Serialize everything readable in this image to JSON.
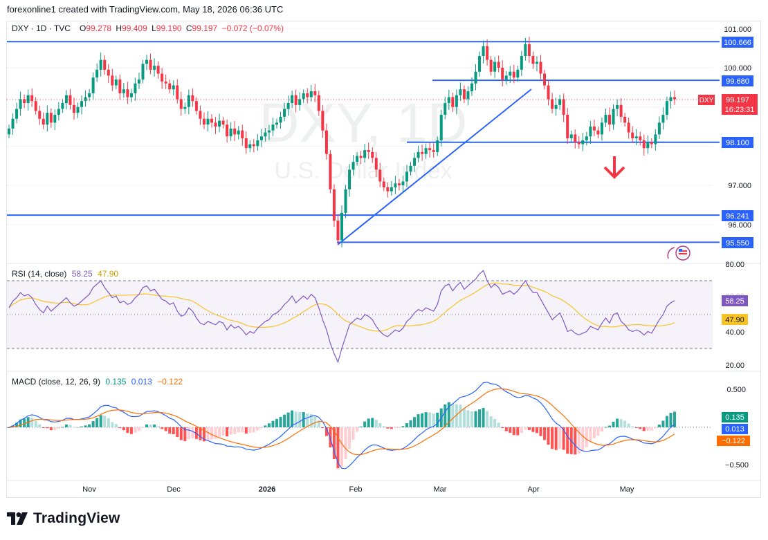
{
  "header": {
    "attribution": "forexonline1 created with TradingView.com, May 18, 2026 06:36 UTC"
  },
  "legend": {
    "symbol": "DXY · 1D · TVC",
    "o_label": "O",
    "o": "99.278",
    "h_label": "H",
    "h": "99.409",
    "l_label": "L",
    "l": "99.190",
    "c_label": "C",
    "c": "99.197",
    "chg": "−0.072 (−0.07%)"
  },
  "watermark": {
    "big": "DXY, 1D",
    "small": "U.S. Dollar Index"
  },
  "price_axis": {
    "ticks": [
      "101.000",
      "100.000",
      "97.000",
      "96.000"
    ],
    "level_labels": [
      "100.666",
      "99.680",
      "98.100",
      "96.241",
      "95.550"
    ],
    "last_symbol": "DXY",
    "last_price": "99.197",
    "countdown": "16:23:31",
    "bottom_cut": "80.00"
  },
  "levels": [
    100.666,
    99.68,
    98.1,
    96.241,
    95.55
  ],
  "rsi": {
    "title": "RSI (14, close)",
    "value": "58.25",
    "ma": "47.90",
    "ticks": [
      "40.00",
      "20.00"
    ],
    "cut_tick": "60.00",
    "color": "#7e57c2",
    "ma_color": "#f7c325"
  },
  "macd": {
    "title": "MACD (close, 12, 26, 9)",
    "macd": "0.135",
    "signal": "0.013",
    "hist": "−0.122",
    "ticks": [
      "0.500",
      "−0.500"
    ],
    "macd_color": "#2962ff",
    "signal_color": "#ff6d00"
  },
  "time_axis": {
    "labels": [
      "Nov",
      "Dec",
      "2026",
      "Feb",
      "Mar",
      "Apr",
      "May"
    ]
  },
  "brand": {
    "name": "TradingView"
  },
  "colors": {
    "up": "#089981",
    "down": "#f23645",
    "level": "#2962ff",
    "arrow": "#f23645"
  },
  "chart_data": {
    "type": "candlestick",
    "title": "DXY · 1D · TVC",
    "ylim": [
      95.2,
      101.2
    ],
    "x_labels": [
      "Nov",
      "Dec",
      "2026",
      "Feb",
      "Mar",
      "Apr",
      "May"
    ],
    "close": [
      98.45,
      98.7,
      98.95,
      99.2,
      99.1,
      99.3,
      99.15,
      98.9,
      98.7,
      98.55,
      98.85,
      98.6,
      98.8,
      98.95,
      99.1,
      99.3,
      99.05,
      98.85,
      99.0,
      99.15,
      99.25,
      99.35,
      99.75,
      99.95,
      100.2,
      99.95,
      99.8,
      99.55,
      99.7,
      99.35,
      99.45,
      99.25,
      99.35,
      99.6,
      99.7,
      100.1,
      100.2,
      99.95,
      100.05,
      99.85,
      99.65,
      99.6,
      99.45,
      99.55,
      99.2,
      98.95,
      99.0,
      99.3,
      99.15,
      98.9,
      98.7,
      98.55,
      98.7,
      98.6,
      98.5,
      98.65,
      98.55,
      98.25,
      98.45,
      98.3,
      98.4,
      98.2,
      97.95,
      98.05,
      98.0,
      98.15,
      98.25,
      98.35,
      98.4,
      98.55,
      98.6,
      98.75,
      98.95,
      99.1,
      99.3,
      99.05,
      99.2,
      99.35,
      99.25,
      99.4,
      99.3,
      98.9,
      98.4,
      97.8,
      96.9,
      96.1,
      95.6,
      96.3,
      96.9,
      97.4,
      97.6,
      97.75,
      97.7,
      97.9,
      97.85,
      97.7,
      97.4,
      97.1,
      96.95,
      96.85,
      96.95,
      97.05,
      97.0,
      97.1,
      97.35,
      97.5,
      97.7,
      97.85,
      97.8,
      97.95,
      97.9,
      97.85,
      98.15,
      98.8,
      99.1,
      99.25,
      99.0,
      99.3,
      99.45,
      99.2,
      99.4,
      99.6,
      99.9,
      100.3,
      100.55,
      100.2,
      99.9,
      100.15,
      100.0,
      99.7,
      99.8,
      99.9,
      99.75,
      99.95,
      100.3,
      100.6,
      100.3,
      100.1,
      100.15,
      99.85,
      99.55,
      99.2,
      98.95,
      99.05,
      99.2,
      98.8,
      98.2,
      98.3,
      98.1,
      98.05,
      98.15,
      98.25,
      98.5,
      98.4,
      98.3,
      98.6,
      98.8,
      98.55,
      98.95,
      99.05,
      98.75,
      98.6,
      98.35,
      98.2,
      98.25,
      98.15,
      97.95,
      98.1,
      98.05,
      98.3,
      98.6,
      98.8,
      99.15,
      99.25,
      99.197
    ],
    "lows_context": {
      "swing_low": 95.55,
      "swing_high": 100.666
    },
    "rsi": [
      54,
      58,
      60,
      63,
      61,
      62,
      60,
      56,
      53,
      51,
      55,
      52,
      54,
      56,
      58,
      60,
      57,
      55,
      56,
      58,
      60,
      62,
      66,
      68,
      70,
      66,
      63,
      60,
      61,
      57,
      58,
      56,
      57,
      60,
      62,
      66,
      67,
      64,
      65,
      62,
      59,
      58,
      56,
      57,
      52,
      49,
      50,
      54,
      52,
      48,
      45,
      44,
      46,
      45,
      44,
      46,
      45,
      41,
      44,
      42,
      43,
      41,
      38,
      40,
      39,
      42,
      44,
      46,
      47,
      50,
      51,
      53,
      56,
      58,
      61,
      57,
      59,
      61,
      59,
      62,
      60,
      54,
      47,
      41,
      33,
      27,
      22,
      30,
      37,
      44,
      46,
      48,
      47,
      50,
      49,
      47,
      43,
      40,
      38,
      37,
      39,
      41,
      40,
      42,
      46,
      48,
      51,
      53,
      52,
      54,
      53,
      52,
      56,
      64,
      67,
      68,
      64,
      67,
      69,
      65,
      67,
      69,
      71,
      74,
      76,
      70,
      66,
      68,
      66,
      62,
      63,
      64,
      62,
      64,
      67,
      70,
      66,
      63,
      63,
      59,
      55,
      51,
      47,
      49,
      51,
      46,
      40,
      41,
      39,
      38,
      39,
      40,
      43,
      42,
      41,
      45,
      48,
      45,
      50,
      51,
      46,
      44,
      41,
      40,
      41,
      40,
      38,
      40,
      39,
      43,
      47,
      50,
      55,
      57,
      58.25
    ]
  }
}
